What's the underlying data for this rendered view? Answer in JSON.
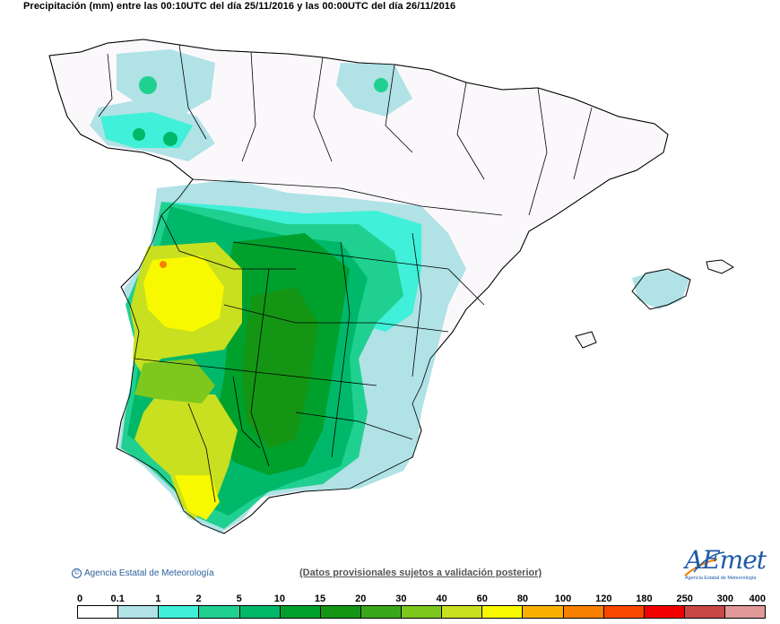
{
  "map": {
    "title": "Precipitación (mm) entre las 00:10UTC del día 25/11/2016 y las 00:00UTC del día 26/11/2016"
  },
  "footer": {
    "credit": "Agencia Estatal de Meteorología",
    "disclaimer": "(Datos provisionales sujetos a validación posterior)",
    "logo_text": "AEmet",
    "logo_sub": "Agencia Estatal de Meteorología"
  },
  "legend": {
    "thresholds": [
      "0",
      "0.1",
      "1",
      "2",
      "5",
      "10",
      "15",
      "20",
      "30",
      "40",
      "60",
      "80",
      "100",
      "120",
      "180",
      "250",
      "300",
      "400"
    ],
    "colors": [
      "#ffffff",
      "#b0e2e6",
      "#40f0d8",
      "#20d090",
      "#00b86a",
      "#00a02c",
      "#149614",
      "#3aa81a",
      "#7ec81e",
      "#c8e020",
      "#f8f800",
      "#f8b000",
      "#f88000",
      "#f84800",
      "#f00000",
      "#c84848",
      "#e09898",
      "#f0c8c0"
    ]
  },
  "legend_meta": {
    "units": "mm"
  }
}
